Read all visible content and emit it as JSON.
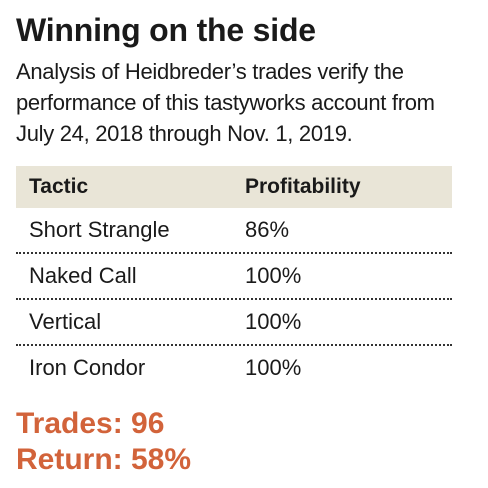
{
  "title": "Winning on the side",
  "subtitle": "Analysis of Heidbreder’s trades verify the performance of this tastyworks account from July 24, 2018 through Nov. 1, 2019.",
  "table": {
    "headers": {
      "tactic": "Tactic",
      "profitability": "Profitability"
    },
    "header_bg": "#e9e5d7",
    "rows": [
      {
        "tactic": "Short Strangle",
        "profitability": "86%"
      },
      {
        "tactic": "Naked Call",
        "profitability": "100%"
      },
      {
        "tactic": "Vertical",
        "profitability": "100%"
      },
      {
        "tactic": "Iron Condor",
        "profitability": "100%"
      }
    ]
  },
  "summary": {
    "trades": "Trades: 96",
    "return": "Return: 58%",
    "color": "#d2633a"
  }
}
